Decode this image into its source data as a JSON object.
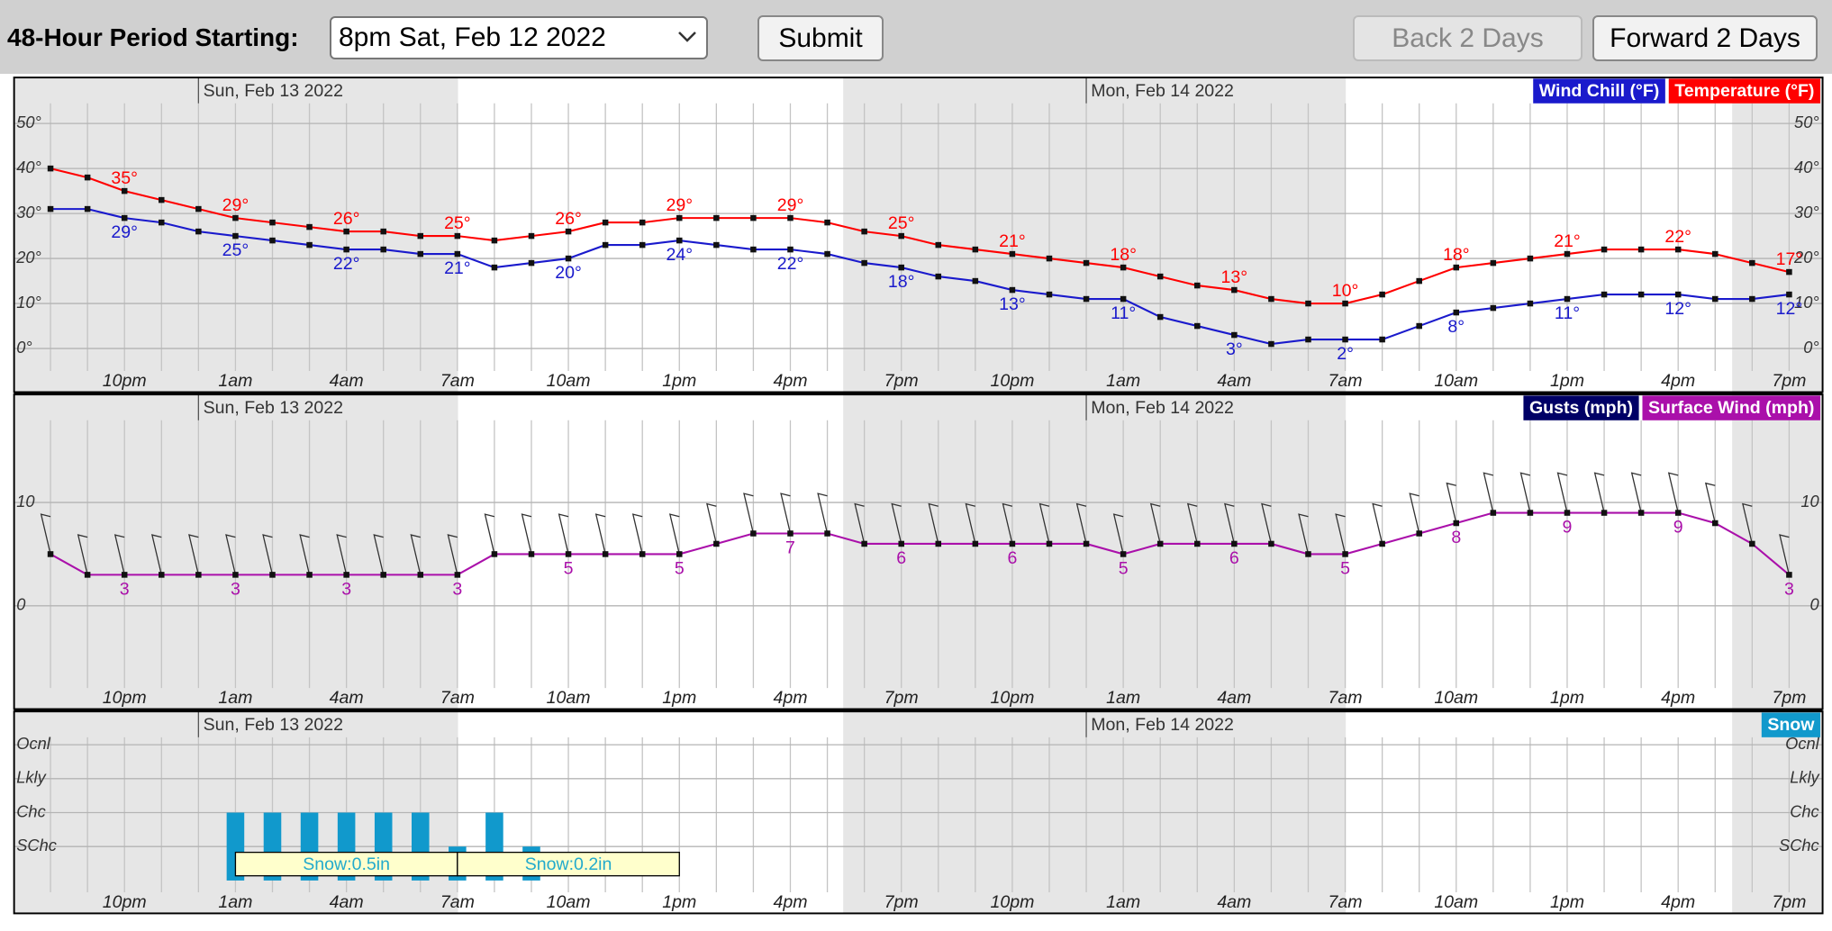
{
  "form": {
    "label": "48-Hour Period Starting:",
    "selected": "8pm Sat, Feb 12 2022",
    "submit": "Submit",
    "back": "Back 2 Days",
    "forward": "Forward 2 Days"
  },
  "chart_data": [
    {
      "type": "line",
      "days": [
        "Sun, Feb 13 2022",
        "Mon, Feb 14 2022"
      ],
      "categories": [
        null,
        null,
        "10pm",
        null,
        null,
        "1am",
        null,
        null,
        "4am",
        null,
        null,
        "7am",
        null,
        null,
        "10am",
        null,
        null,
        "1pm",
        null,
        null,
        "4pm",
        null,
        null,
        "7pm",
        null,
        null,
        "10pm",
        null,
        null,
        "1am",
        null,
        null,
        "4am",
        null,
        null,
        "7am",
        null,
        null,
        "10am",
        null,
        null,
        "1pm",
        null,
        null,
        "4pm",
        null,
        null,
        "7pm"
      ],
      "ylim": [
        -5,
        55
      ],
      "yticks": [
        {
          "value": 0,
          "label": "0°"
        },
        {
          "value": 10,
          "label": "10°"
        },
        {
          "value": 20,
          "label": "20°"
        },
        {
          "value": 30,
          "label": "30°"
        },
        {
          "value": 40,
          "label": "40°"
        },
        {
          "value": 50,
          "label": "50°"
        }
      ],
      "grid": true,
      "series": [
        {
          "name": "Wind Chill (°F)",
          "color": "#1a1acc",
          "values": [
            31,
            31,
            29,
            28,
            26,
            25,
            24,
            23,
            22,
            22,
            21,
            21,
            18,
            19,
            20,
            23,
            23,
            24,
            23,
            22,
            22,
            21,
            19,
            18,
            16,
            15,
            13,
            12,
            11,
            11,
            7,
            5,
            3,
            1,
            2,
            2,
            2,
            5,
            8,
            9,
            10,
            11,
            12,
            12,
            12,
            11,
            11,
            12
          ],
          "value_labels": [
            null,
            null,
            "29°",
            null,
            null,
            "25°",
            null,
            null,
            "22°",
            null,
            null,
            "21°",
            null,
            null,
            "20°",
            null,
            null,
            "24°",
            null,
            null,
            "22°",
            null,
            null,
            "18°",
            null,
            null,
            "13°",
            null,
            null,
            "11°",
            null,
            null,
            "3°",
            null,
            null,
            "2°",
            null,
            null,
            "8°",
            null,
            null,
            "11°",
            null,
            null,
            "12°",
            null,
            null,
            "12°"
          ]
        },
        {
          "name": "Temperature (°F)",
          "color": "#ff0000",
          "values": [
            40,
            38,
            35,
            33,
            31,
            29,
            28,
            27,
            26,
            26,
            25,
            25,
            24,
            25,
            26,
            28,
            28,
            29,
            29,
            29,
            29,
            28,
            26,
            25,
            23,
            22,
            21,
            20,
            19,
            18,
            16,
            14,
            13,
            11,
            10,
            10,
            12,
            15,
            18,
            19,
            20,
            21,
            22,
            22,
            22,
            21,
            19,
            17
          ],
          "value_labels": [
            null,
            null,
            "35°",
            null,
            null,
            "29°",
            null,
            null,
            "26°",
            null,
            null,
            "25°",
            null,
            null,
            "26°",
            null,
            null,
            "29°",
            null,
            null,
            "29°",
            null,
            null,
            "25°",
            null,
            null,
            "21°",
            null,
            null,
            "18°",
            null,
            null,
            "13°",
            null,
            null,
            "10°",
            null,
            null,
            "18°",
            null,
            null,
            "21°",
            null,
            null,
            "22°",
            null,
            null,
            "17°"
          ]
        }
      ]
    },
    {
      "type": "line",
      "days": [
        "Sun, Feb 13 2022",
        "Mon, Feb 14 2022"
      ],
      "categories": [
        null,
        null,
        "10pm",
        null,
        null,
        "1am",
        null,
        null,
        "4am",
        null,
        null,
        "7am",
        null,
        null,
        "10am",
        null,
        null,
        "1pm",
        null,
        null,
        "4pm",
        null,
        null,
        "7pm",
        null,
        null,
        "10pm",
        null,
        null,
        "1am",
        null,
        null,
        "4am",
        null,
        null,
        "7am",
        null,
        null,
        "10am",
        null,
        null,
        "1pm",
        null,
        null,
        "4pm",
        null,
        null,
        "7pm"
      ],
      "ylim": [
        -7.5,
        17.5
      ],
      "yticks": [
        0,
        10
      ],
      "grid": true,
      "series": [
        {
          "name": "Gusts (mph)",
          "color": "#000066",
          "values": [
            null,
            null,
            null,
            null,
            null,
            null,
            null,
            null,
            null,
            null,
            null,
            null,
            null,
            null,
            null,
            null,
            null,
            null,
            null,
            null,
            null,
            null,
            null,
            null,
            null,
            null,
            null,
            null,
            null,
            null,
            null,
            null,
            null,
            null,
            null,
            null,
            null,
            null,
            null,
            null,
            null,
            null,
            null,
            null,
            null,
            null,
            null,
            null
          ]
        },
        {
          "name": "Surface Wind (mph)",
          "color": "#aa10aa",
          "values": [
            5,
            3,
            3,
            3,
            3,
            3,
            3,
            3,
            3,
            3,
            3,
            3,
            5,
            5,
            5,
            5,
            5,
            5,
            6,
            7,
            7,
            7,
            6,
            6,
            6,
            6,
            6,
            6,
            6,
            5,
            6,
            6,
            6,
            6,
            5,
            5,
            6,
            7,
            8,
            9,
            9,
            9,
            9,
            9,
            9,
            8,
            6,
            3
          ],
          "value_labels": [
            null,
            null,
            "3",
            null,
            null,
            "3",
            null,
            null,
            "3",
            null,
            null,
            "3",
            null,
            null,
            "5",
            null,
            null,
            "5",
            null,
            null,
            "7",
            null,
            null,
            "6",
            null,
            null,
            "6",
            null,
            null,
            "5",
            null,
            null,
            "6",
            null,
            null,
            "5",
            null,
            null,
            "8",
            null,
            null,
            "9",
            null,
            null,
            "9",
            null,
            null,
            "3"
          ]
        }
      ]
    },
    {
      "type": "bar",
      "days": [
        "Sun, Feb 13 2022",
        "Mon, Feb 14 2022"
      ],
      "categories": [
        null,
        null,
        "10pm",
        null,
        null,
        "1am",
        null,
        null,
        "4am",
        null,
        null,
        "7am",
        null,
        null,
        "10am",
        null,
        null,
        "1pm",
        null,
        null,
        "4pm",
        null,
        null,
        "7pm",
        null,
        null,
        "10pm",
        null,
        null,
        "1am",
        null,
        null,
        "4am",
        null,
        null,
        "7am",
        null,
        null,
        "10am",
        null,
        null,
        "1pm",
        null,
        null,
        "4pm",
        null,
        null,
        "7pm"
      ],
      "ylim": [
        0,
        4.6
      ],
      "yticks": [
        {
          "value": 1,
          "label": "SChc"
        },
        {
          "value": 2,
          "label": "Chc"
        },
        {
          "value": 3,
          "label": "Lkly"
        },
        {
          "value": 4,
          "label": "Ocnl"
        }
      ],
      "grid": true,
      "series": [
        {
          "name": "Snow",
          "color": "#1199cc",
          "values": [
            null,
            null,
            null,
            null,
            null,
            2,
            2,
            2,
            2,
            2,
            2,
            1,
            2,
            1,
            null,
            null,
            null,
            null,
            null,
            null,
            null,
            null,
            null,
            null,
            null,
            null,
            null,
            null,
            null,
            null,
            null,
            null,
            null,
            null,
            null,
            null,
            null,
            null,
            null,
            null,
            null,
            null,
            null,
            null,
            null,
            null,
            null,
            null
          ]
        }
      ],
      "annotations": [
        {
          "text": "Snow:0.5in",
          "from": "1am",
          "to": "7am"
        },
        {
          "text": "Snow:0.2in",
          "from": "7am",
          "to": "1pm"
        }
      ]
    }
  ]
}
